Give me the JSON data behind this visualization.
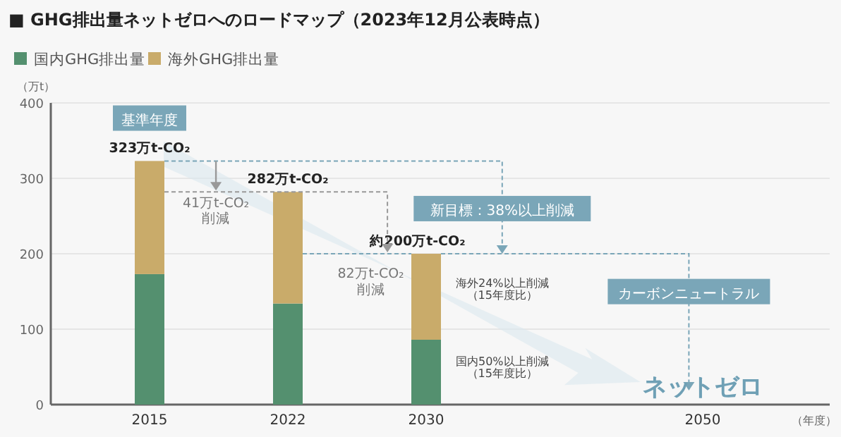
{
  "chart_data": {
    "type": "bar",
    "title": "■ GHG排出量ネットゼロへのロードマップ（2023年12月公表時点）",
    "ylabel": "（万t）",
    "xlabel": "（年度）",
    "categories": [
      "2015",
      "2022",
      "2030",
      null,
      "2050"
    ],
    "series": [
      {
        "name": "国内GHG排出量",
        "color": "#54906f",
        "values": [
          173,
          134,
          86,
          null,
          0
        ]
      },
      {
        "name": "海外GHG排出量",
        "color": "#c9ab6a",
        "values": [
          150,
          148,
          114,
          null,
          0
        ]
      }
    ],
    "stacked": true,
    "totals": [
      "323万t-CO₂",
      "282万t-CO₂",
      "約200万t-CO₂",
      null,
      null
    ],
    "ylim": [
      0,
      400
    ],
    "yticks": [
      0,
      100,
      200,
      300,
      400
    ],
    "grid": "y",
    "legend": "top left",
    "annotations": [
      "基準年度",
      "41万t-CO₂\n削減",
      {
        "text": "82万t-CO₂\n削減",
        "x": "2030",
        "y": 200
      },
      "新目標：38%以上削減",
      "海外24%以上削減",
      "（15年度比）",
      "国内50%以上削減",
      "（15年度比）",
      "カーボンニュートラル",
      {
        "text": "ネットゼロ",
        "x": "2050",
        "y": 0
      }
    ]
  }
}
